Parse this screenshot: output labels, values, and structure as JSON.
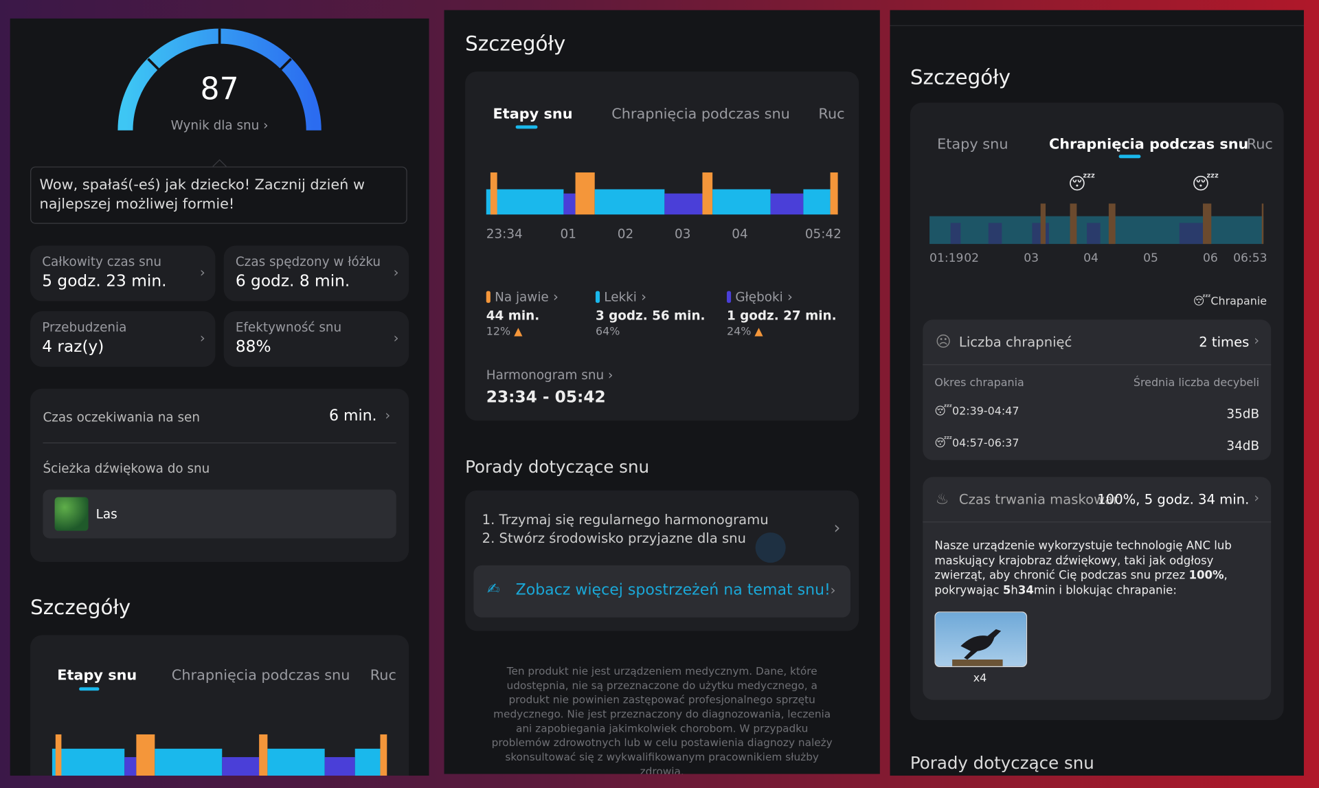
{
  "panel1": {
    "score": "87",
    "score_label": "Wynik dla snu",
    "message": "Wow, spałaś(-eś) jak dziecko! Zacznij dzień w najlepszej możliwej formie!",
    "stats": [
      {
        "label": "Całkowity czas snu",
        "value": "5 godz. 23 min."
      },
      {
        "label": "Czas spędzony w łóżku",
        "value": "6 godz. 8 min."
      },
      {
        "label": "Przebudzenia",
        "value": "4 raz(y)"
      },
      {
        "label": "Efektywność snu",
        "value": "88%"
      }
    ],
    "latency": {
      "label": "Czas oczekiwania na sen",
      "value": "6 min."
    },
    "soundtrack": {
      "label": "Ścieżka dźwiękowa do snu",
      "track": "Las"
    },
    "details_title": "Szczegóły",
    "tabs": [
      "Etapy snu",
      "Chrapnięcia podczas snu",
      "Ruc"
    ]
  },
  "panel2": {
    "title": "Szczegóły",
    "tabs": [
      "Etapy snu",
      "Chrapnięcia podczas snu",
      "Ruc"
    ],
    "time_axis": [
      "23:34",
      "01",
      "02",
      "03",
      "04",
      "05:42"
    ],
    "legend": [
      {
        "name": "Na jawie",
        "duration": "44 min.",
        "percent": "12%"
      },
      {
        "name": "Lekki",
        "duration": "3 godz. 56 min.",
        "percent": "64%"
      },
      {
        "name": "Głęboki",
        "duration": "1 godz. 27 min.",
        "percent": "24%"
      }
    ],
    "schedule": {
      "label": "Harmonogram snu",
      "value": "23:34 - 05:42"
    },
    "tips_title": "Porady dotyczące snu",
    "tips": [
      "1. Trzymaj się regularnego harmonogramu",
      "2. Stwórz środowisko przyjazne dla snu"
    ],
    "insights_link": "Zobacz więcej spostrzeżeń na temat snu!",
    "disclaimer": "Ten produkt nie jest urządzeniem medycznym. Dane, które udostępnia, nie są przeznaczone do użytku medycznego, a produkt nie powinien zastępować profesjonalnego sprzętu medycznego. Nie jest przeznaczony do diagnozowania, leczenia ani zapobiegania jakimkolwiek chorobom. W przypadku problemów zdrowotnych lub w celu postawienia diagnozy należy skonsultować się z wykwalifikowanym pracownikiem służby zdrowia."
  },
  "panel3": {
    "title": "Szczegóły",
    "tabs": [
      "Etapy snu",
      "Chrapnięcia podczas snu",
      "Ruc"
    ],
    "time_axis": [
      "01:19",
      "02",
      "03",
      "04",
      "05",
      "06",
      "06:53"
    ],
    "legend": "Chrapanie",
    "snore_count": {
      "label": "Liczba chrapnięć",
      "value": "2 times"
    },
    "table": {
      "headers": [
        "Okres chrapania",
        "Średnia liczba decybeli"
      ],
      "rows": [
        [
          "02:39-04:47",
          "35dB"
        ],
        [
          "04:57-06:37",
          "34dB"
        ]
      ]
    },
    "masking": {
      "label": "Czas trwania maskowania",
      "value": "100%, 5 godz. 34 min."
    },
    "description": [
      "Nasze urządzenie wykorzystuje technologię ANC lub maskujący krajobraz dźwiękowy, taki jak odgłosy zwierząt, aby chronić Cię podczas snu przez ",
      "100%",
      ", pokrywając ",
      "5",
      "h",
      "34",
      "min i blokując chrapanie:"
    ],
    "sound_count": "x4",
    "tips_title": "Porady dotyczące snu"
  }
}
